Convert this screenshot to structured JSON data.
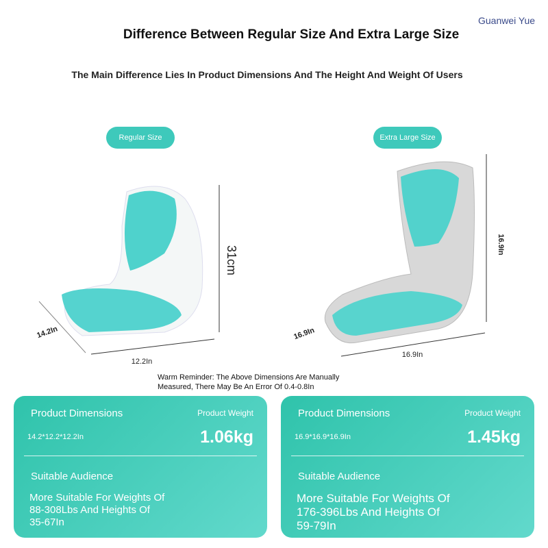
{
  "watermark": "Guanwei Yue",
  "header": {
    "title": "Difference Between Regular Size And Extra Large Size",
    "subtitle": "The Main Difference Lies In Product Dimensions And The Height And Weight Of Users"
  },
  "products": [
    {
      "badge": "Regular Size",
      "height_label": "31cm",
      "depth_label": "14.2In",
      "width_label": "12.2In"
    },
    {
      "badge": "Extra Large Size",
      "height_label": "16.9In",
      "depth_label": "16.9In",
      "width_label": "16.9In"
    }
  ],
  "reminder": [
    "Warm Reminder: The Above Dimensions Are Manually",
    "Measured, There May Be An Error Of 0.4-0.8In"
  ],
  "cards": [
    {
      "dimensions_title": "Product Dimensions",
      "dimensions": "14.2*12.2*12.2In",
      "weight_title": "Product Weight",
      "weight": "1.06kg",
      "audience_title": "Suitable Audience",
      "audience": [
        "More Suitable For Weights Of",
        "88-308Lbs And Heights Of",
        "35-67In"
      ]
    },
    {
      "dimensions_title": "Product Dimensions",
      "dimensions": "16.9*16.9*16.9In",
      "weight_title": "Product Weight",
      "weight": "1.45kg",
      "audience_title": "Suitable Audience",
      "audience": [
        "More Suitable For Weights Of",
        "176-396Lbs And Heights Of",
        "59-79In"
      ]
    }
  ]
}
